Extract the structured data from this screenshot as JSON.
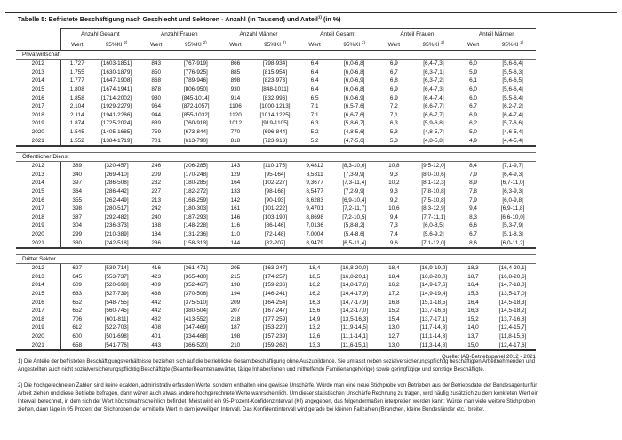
{
  "title": {
    "text": "Tabelle 5: Befristete Beschäftigung nach Geschlecht und Sektoren - Anzahl (in Tausend) und Anteil",
    "sup": "1)",
    "suffix": " (in %)"
  },
  "table": {
    "groups": [
      "Anzahl Gesamt",
      "Anzahl Frauen",
      "Anzahl Männer",
      "Anteil Gesamt",
      "Anteil Frauen",
      "Anteil Männer"
    ],
    "subcols": {
      "wert": "Wert",
      "ki": "95%KI",
      "ki_sup": "2)"
    },
    "sections": [
      {
        "label": "Privatwirtschaft",
        "rows": [
          {
            "year": "2012",
            "cells": [
              "1.727",
              "[1603-1851]",
              "843",
              "[767-919]",
              "866",
              "[798-934]",
              "6,4",
              "[6,0-6,8]",
              "6,9",
              "[6,4-7,3]",
              "6,0",
              "[5,6-6,4]"
            ]
          },
          {
            "year": "2013",
            "cells": [
              "1.755",
              "[1630-1879]",
              "850",
              "[776-925]",
              "885",
              "[815-954]",
              "6,4",
              "[6,0-6,8]",
              "6,7",
              "[6,3-7,1]",
              "5,9",
              "[5,5-6,3]"
            ]
          },
          {
            "year": "2014",
            "cells": [
              "1.777",
              "[1647-1908]",
              "868",
              "[789-946]",
              "898",
              "[823-973]",
              "6,4",
              "[6,0-6,9]",
              "6,8",
              "[6,3-7,2]",
              "6,1",
              "[5,6-6,5]"
            ]
          },
          {
            "year": "2015",
            "cells": [
              "1.808",
              "[1674-1941]",
              "878",
              "[806-950]",
              "930",
              "[848-1011]",
              "6,4",
              "[6,0-6,8]",
              "6,9",
              "[6,4-7,3]",
              "6,0",
              "[5,6-6,4]"
            ]
          },
          {
            "year": "2016",
            "cells": [
              "1.858",
              "[1714-2002]",
              "930",
              "[845-1014]",
              "914",
              "[832-996]",
              "6,5",
              "[6,0-6,9]",
              "6,9",
              "[6,4-7,4]",
              "6,0",
              "[5,5-6,4]"
            ]
          },
          {
            "year": "2017",
            "cells": [
              "2.104",
              "[1929-2279]",
              "964",
              "[872-1057]",
              "1106",
              "[1000-1213]",
              "7,1",
              "[6,5-7,6]",
              "7,2",
              "[6,6-7,7]",
              "6,7",
              "[6,2-7,2]"
            ]
          },
          {
            "year": "2018",
            "cells": [
              "2.114",
              "[1941-2286]",
              "944",
              "[855-1032]",
              "1120",
              "[1014-1225]",
              "7,1",
              "[6,6-7,6]",
              "7,1",
              "[6,6-7,7]",
              "6,9",
              "[6,4-7,4]"
            ]
          },
          {
            "year": "2019",
            "cells": [
              "1.874",
              "[1725-2024]",
              "839",
              "[760-918]",
              "1012",
              "[919-1105]",
              "6,3",
              "[5,8-6,7]",
              "6,3",
              "[5,9-6,8]",
              "6,2",
              "[5,7-6,6]"
            ]
          },
          {
            "year": "2020",
            "cells": [
              "1.545",
              "[1405-1685]",
              "759",
              "[673-844]",
              "770",
              "[696-844]",
              "5,2",
              "[4,8-5,6]",
              "5,3",
              "[4,8-5,7]",
              "5,0",
              "[4,6-5,4]"
            ]
          },
          {
            "year": "2021",
            "cells": [
              "1.552",
              "[1384-1719]",
              "701",
              "[613-790]",
              "818",
              "[723-913]",
              "5,2",
              "[4,7-5,6]",
              "5,3",
              "[4,8-5,8]",
              "4,9",
              "[4,4-5,4]"
            ]
          }
        ]
      },
      {
        "label": "Öffentlicher Dienst",
        "rows": [
          {
            "year": "2012",
            "cells": [
              "389",
              "[320-457]",
              "246",
              "[206-285]",
              "143",
              "[110-175]",
              "9,4812",
              "[8,3-10,6]",
              "10,8",
              "[9,5-12,0]",
              "8,4",
              "[7,1-9,7]"
            ]
          },
          {
            "year": "2013",
            "cells": [
              "340",
              "[269-410]",
              "209",
              "[170-248]",
              "129",
              "[95-164]",
              "8,5811",
              "[7,3-9,9]",
              "9,3",
              "[8,0-10,6]",
              "7,9",
              "[6,4-9,3]"
            ]
          },
          {
            "year": "2014",
            "cells": [
              "397",
              "[286-508]",
              "232",
              "[180-285]",
              "164",
              "[102-227]",
              "9,3677",
              "[7,3-11,4]",
              "10,2",
              "[8,1-12,3]",
              "8,9",
              "[6,7-11,0]"
            ]
          },
          {
            "year": "2015",
            "cells": [
              "364",
              "[286-442]",
              "227",
              "[182-272]",
              "133",
              "[98-168]",
              "8,5477",
              "[7,2-9,9]",
              "9,3",
              "[7,8-10,8]",
              "7,8",
              "[6,3-9,3]"
            ]
          },
          {
            "year": "2016",
            "cells": [
              "355",
              "[262-449]",
              "213",
              "[168-259]",
              "142",
              "[90-193]",
              "8,6283",
              "[6,9-10,4]",
              "9,2",
              "[7,5-10,8]",
              "7,9",
              "[6,0-9,8]"
            ]
          },
          {
            "year": "2017",
            "cells": [
              "398",
              "[280-517]",
              "242",
              "[180-303]",
              "161",
              "[101-222]",
              "9,4701",
              "[7,2-11,7]",
              "10,6",
              "[8,3-12,9]",
              "9,4",
              "[6,9-11,8]"
            ]
          },
          {
            "year": "2018",
            "cells": [
              "387",
              "[292-482]",
              "240",
              "[187-293]",
              "146",
              "[103-190]",
              "8,8698",
              "[7,2-10,5]",
              "9,4",
              "[7,7-11,1]",
              "8,3",
              "[6,6-10,0]"
            ]
          },
          {
            "year": "2019",
            "cells": [
              "304",
              "[236-373]",
              "188",
              "[148-228]",
              "116",
              "[86-146]",
              "7,0136",
              "[5,8-8,2]",
              "7,3",
              "[6,0-8,5]",
              "6,6",
              "[5,3-7,9]"
            ]
          },
          {
            "year": "2020",
            "cells": [
              "299",
              "[210-389]",
              "184",
              "[131-236]",
              "110",
              "[72-148]",
              "7,0004",
              "[5,4-8,6]",
              "7,4",
              "[5,6-9,2]",
              "6,7",
              "[5,1-8,3]"
            ]
          },
          {
            "year": "2021",
            "cells": [
              "380",
              "[242-518]",
              "236",
              "[158-313]",
              "144",
              "[82-207]",
              "8,9479",
              "[6,5-11,4]",
              "9,6",
              "[7,1-12,0]",
              "8,6",
              "[6,0-11,2]"
            ]
          }
        ]
      },
      {
        "label": "Dritter Sektor",
        "rows": [
          {
            "year": "2012",
            "cells": [
              "627",
              "[539-714]",
              "416",
              "[361-471]",
              "205",
              "[163-247]",
              "18,4",
              "[16,8-20,0]",
              "18,4",
              "[16,9-19,9]",
              "18,3",
              "[16,4-20,1]"
            ]
          },
          {
            "year": "2013",
            "cells": [
              "645",
              "[553-737]",
              "423",
              "[365-480]",
              "215",
              "[174-257]",
              "18,5",
              "[16,8-20,1]",
              "18,4",
              "[16,8-20,0]",
              "18,7",
              "[16,8-20,6]"
            ]
          },
          {
            "year": "2014",
            "cells": [
              "609",
              "[520-698]",
              "409",
              "[352-467]",
              "198",
              "[159-236]",
              "16,2",
              "[14,8-17,6]",
              "16,2",
              "[14,9-17,6]",
              "16,4",
              "[14,7-18,0]"
            ]
          },
          {
            "year": "2015",
            "cells": [
              "633",
              "[527-739]",
              "438",
              "[370-506]",
              "194",
              "[146-241]",
              "16,2",
              "[14,4-17,9]",
              "17,2",
              "[14,9-19,4]",
              "15,3",
              "[13,5-17,0]"
            ]
          },
          {
            "year": "2016",
            "cells": [
              "652",
              "[548-755]",
              "442",
              "[375-510]",
              "209",
              "[164-254]",
              "16,3",
              "[14,7-17,9]",
              "16,8",
              "[15,1-18,5]",
              "16,4",
              "[14,5-18,3]"
            ]
          },
          {
            "year": "2017",
            "cells": [
              "652",
              "[560-745]",
              "442",
              "[380-504]",
              "207",
              "[167-247]",
              "15,6",
              "[14,2-17,0]",
              "15,2",
              "[13,7-16,6]",
              "16,3",
              "[14,5-18,2]"
            ]
          },
          {
            "year": "2018",
            "cells": [
              "706",
              "[601-811]",
              "482",
              "[413-552]",
              "218",
              "[177-259]",
              "14,9",
              "[13,5-16,3]",
              "15,4",
              "[13,7-17,1]",
              "15,2",
              "[13,7-16,8]"
            ]
          },
          {
            "year": "2019",
            "cells": [
              "612",
              "[522-703]",
              "408",
              "[347-469]",
              "187",
              "[153-220]",
              "13,2",
              "[11,9-14,5]",
              "13,0",
              "[11,7-14,3]",
              "14,0",
              "[12,4-15,7]"
            ]
          },
          {
            "year": "2020",
            "cells": [
              "600",
              "[501-698]",
              "401",
              "[334-468]",
              "198",
              "[157-239]",
              "12,6",
              "[11,1-14,1]",
              "12,7",
              "[11,1-14,3]",
              "13,7",
              "[11,8-15,6]"
            ]
          },
          {
            "year": "2021",
            "cells": [
              "658",
              "[541-776]",
              "443",
              "[366-520]",
              "210",
              "[159-262]",
              "13,3",
              "[11,6-15,1]",
              "13,0",
              "[11,3-14,8]",
              "15,0",
              "[12,4-17,6]"
            ]
          }
        ]
      }
    ]
  },
  "source": "Quelle: IAB-Betriebspanel 2012 - 2021",
  "footnotes": [
    "1) Die Anteile der befristeten Beschäftigungsverhältnisse beziehen sich auf die betriebliche Gesamtbeschäftigung ohne Auszubildende. Sie umfasst neben sozialversicherungspflichtig beschäftigten Arbeitnehmenden und Angestellten auch nicht sozialversicherungspflichtig Beschäftigte (Beamte/Beamtenanwärter, tätige Inhaber/innen und mithelfende Familienangehörige) sowie geringfügige und sonstige Beschäftigte.",
    "2) Die hochgerechneten Zahlen sind keine exakten, administrativ erfassten Werte, sondern enthalten eine gewisse Unschärfe. Würde man eine neue Stichprobe von Betrieben aus der Betriebsdatei der Bundesagentur für Arbeit ziehen und diese Betriebe befragen, dann wären auch etwas andere hochgerechnete Werte wahrscheinlich. Um dieser statistischen Unschärfe Rechnung zu tragen, wird häufig zusätzlich zu dem konkreten Wert ein Intervall berechnet, in dem sich der Wert höchstwahrscheinlich befindet. Meist wird ein 95-Prozent-Konfidenzintervall (KI) angegeben, das folgendermaßen interpretiert werden kann: Würde man viele weitere Stichproben ziehen, dann läge in 95 Prozent der Stichproben der ermittelte Wert in dem jeweiligen Intervall. Das Konfidenzintervall wird gerade bei kleinen Fallzahlen (Branchen, kleine Bundesländer etc.) breiter."
  ]
}
